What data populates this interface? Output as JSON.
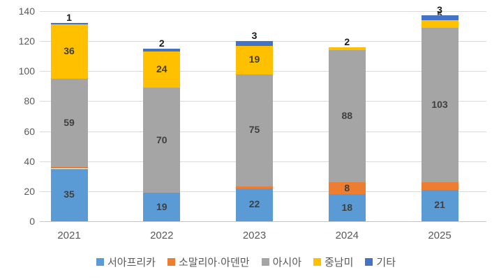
{
  "chart_data": {
    "type": "bar",
    "stacked": true,
    "title": "",
    "xlabel": "",
    "ylabel": "",
    "categories": [
      "2021",
      "2022",
      "2023",
      "2024",
      "2025"
    ],
    "series": [
      {
        "name": "서아프리카",
        "color": "#5B9BD5",
        "values": [
          35,
          19,
          22,
          18,
          21
        ],
        "labels": [
          "35",
          "19",
          "22",
          "18",
          "21"
        ]
      },
      {
        "name": "소말리아·아덴만",
        "color": "#ED7D31",
        "values": [
          1,
          0,
          1,
          8,
          5
        ],
        "labels": [
          "1",
          "0",
          "1",
          "8",
          "5"
        ]
      },
      {
        "name": "아시아",
        "color": "#A5A5A5",
        "values": [
          59,
          70,
          75,
          88,
          103
        ],
        "labels": [
          "59",
          "70",
          "75",
          "88",
          "103"
        ]
      },
      {
        "name": "중남미",
        "color": "#FFC000",
        "values": [
          36,
          24,
          19,
          2,
          5
        ],
        "labels": [
          "36",
          "24",
          "19",
          "2",
          "5"
        ]
      },
      {
        "name": "기타",
        "color": "#4472C4",
        "values": [
          1,
          2,
          3,
          0,
          3
        ],
        "labels": [
          "1",
          "2",
          "3",
          "",
          "3"
        ]
      }
    ],
    "totals": [
      132,
      115,
      120,
      116,
      137
    ],
    "ylim": [
      0,
      140
    ],
    "ytick_step": 20,
    "yticks": [
      0,
      20,
      40,
      60,
      80,
      100,
      120,
      140
    ],
    "grid": true,
    "legend_position": "bottom"
  },
  "colors": {
    "background": "#ffffff",
    "grid": "#d9d9d9",
    "axis_line": "#c6c6c6",
    "tick_label": "#595959",
    "data_label": "#3f3f3f",
    "data_label_above": "#1a1a1a"
  }
}
